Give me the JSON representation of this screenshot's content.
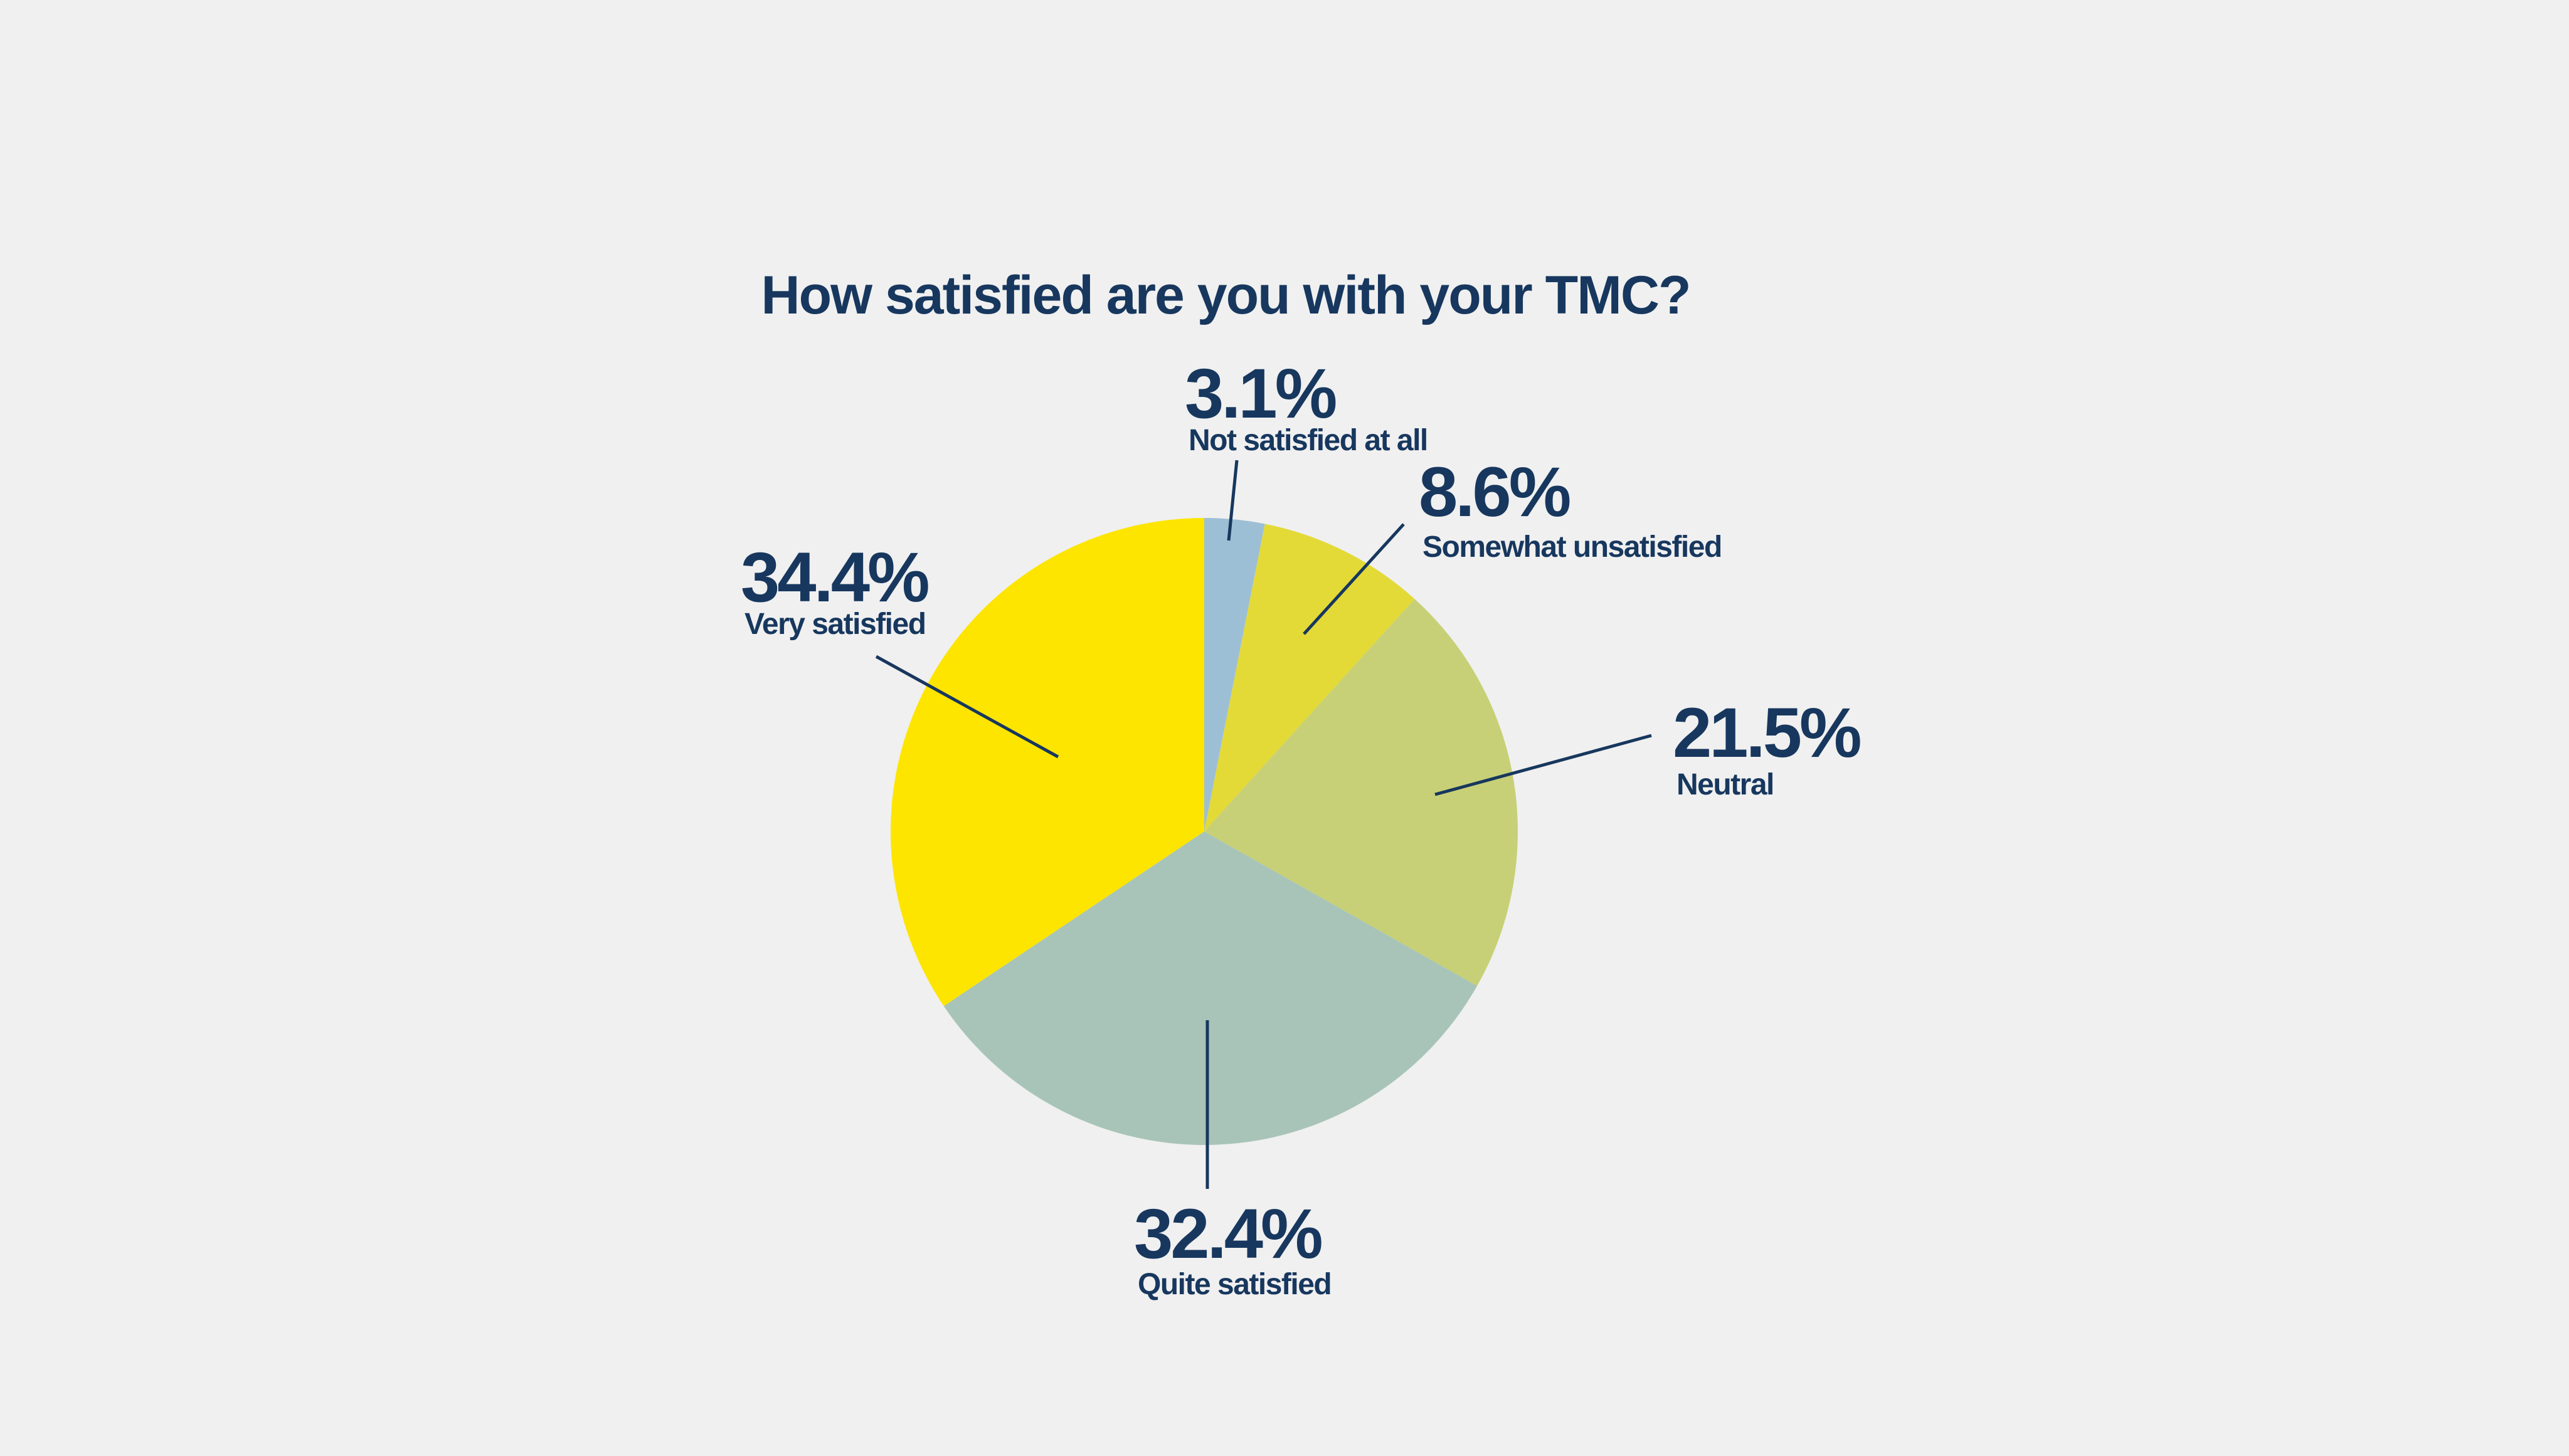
{
  "chart_data": {
    "type": "pie",
    "title": "How satisfied are you with your TMC?",
    "start": "top",
    "direction": "clockwise",
    "slices": [
      {
        "label": "Not satisfied at all",
        "value": 3.1,
        "display": "3.1%",
        "color": "#9dbfd6"
      },
      {
        "label": "Somewhat unsatisfied",
        "value": 8.6,
        "display": "8.6%",
        "color": "#e3da38"
      },
      {
        "label": "Neutral",
        "value": 21.5,
        "display": "21.5%",
        "color": "#c7d076"
      },
      {
        "label": "Quite satisfied",
        "value": 32.4,
        "display": "32.4%",
        "color": "#a8c4b8"
      },
      {
        "label": "Very satisfied",
        "value": 34.4,
        "display": "34.4%",
        "color": "#fde500"
      }
    ]
  },
  "text_color": "#17375e"
}
